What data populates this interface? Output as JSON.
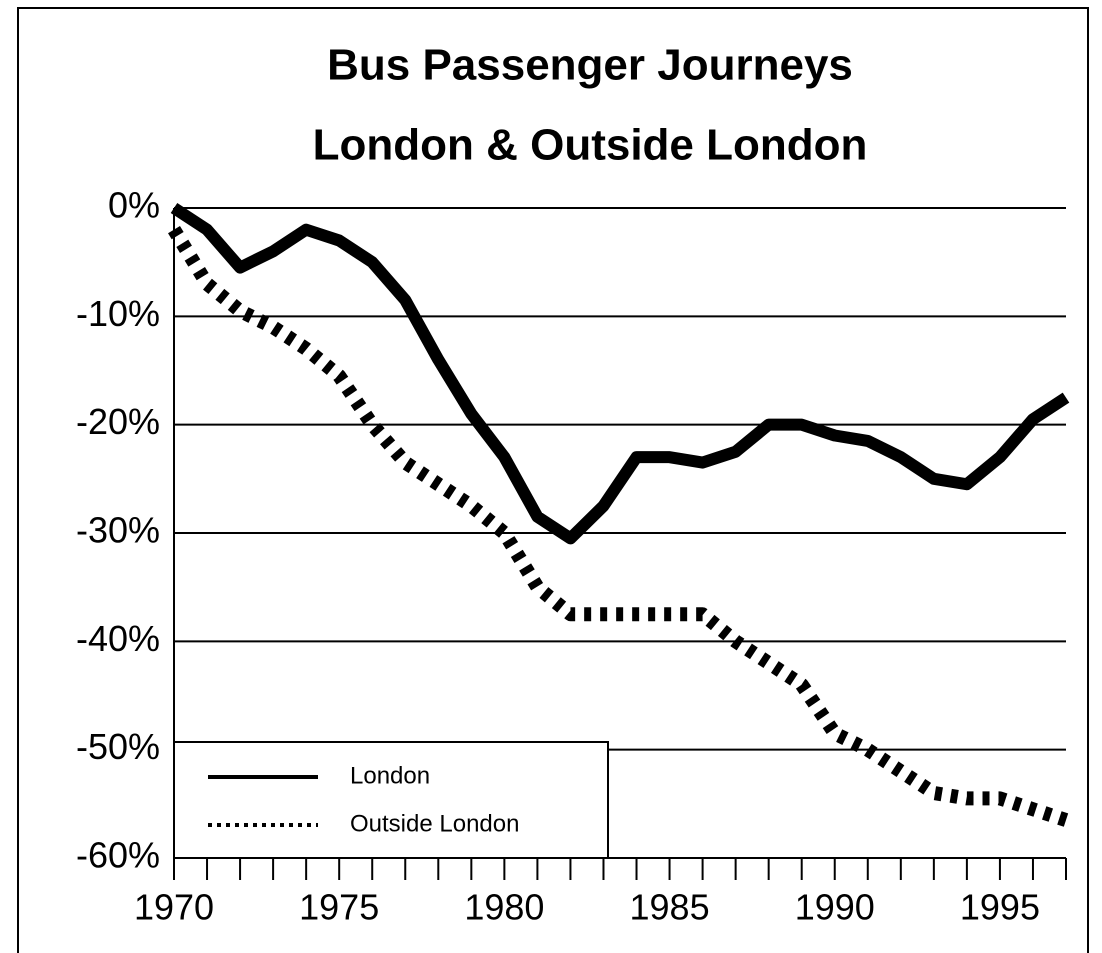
{
  "chart_data": {
    "type": "line",
    "title": [
      "Bus Passenger Journeys",
      "London & Outside London"
    ],
    "x": [
      1970,
      1971,
      1972,
      1973,
      1974,
      1975,
      1976,
      1977,
      1978,
      1979,
      1980,
      1981,
      1982,
      1983,
      1984,
      1985,
      1986,
      1987,
      1988,
      1989,
      1990,
      1991,
      1992,
      1993,
      1994,
      1995,
      1996,
      1997
    ],
    "series": [
      {
        "name": "London",
        "color": "#000000",
        "dash": "solid",
        "values": [
          0,
          -2,
          -5.5,
          -4,
          -2,
          -3,
          -5,
          -8.5,
          -14,
          -19,
          -23,
          -28.5,
          -30.5,
          -27.5,
          -23,
          -23,
          -23.5,
          -22.5,
          -20,
          -20,
          -21,
          -21.5,
          -23,
          -25,
          -25.5,
          -23,
          -19.5,
          -17.5
        ]
      },
      {
        "name": "Outside London",
        "color": "#000000",
        "dash": "dotted",
        "values": [
          -2,
          -7,
          -9.5,
          -11,
          -13,
          -15.5,
          -20,
          -23.5,
          -25.5,
          -27.5,
          -30,
          -35,
          -37.5,
          -37.5,
          -37.5,
          -37.5,
          -37.5,
          -40,
          -42,
          -44,
          -48.5,
          -50,
          -52,
          -54,
          -54.5,
          -54.5,
          -55.5,
          -56.5
        ]
      }
    ],
    "xlim": [
      1970,
      1997
    ],
    "xticks": [
      1970,
      1975,
      1980,
      1985,
      1990,
      1995
    ],
    "ylim": [
      -60,
      0
    ],
    "yticks": [
      {
        "value": 0,
        "label": "0%"
      },
      {
        "value": -10,
        "label": "-10%"
      },
      {
        "value": -20,
        "label": "-20%"
      },
      {
        "value": -30,
        "label": "-30%"
      },
      {
        "value": -40,
        "label": "-40%"
      },
      {
        "value": -50,
        "label": "-50%"
      },
      {
        "value": -60,
        "label": "-60%"
      }
    ],
    "grid": true,
    "legend": "lower left"
  }
}
